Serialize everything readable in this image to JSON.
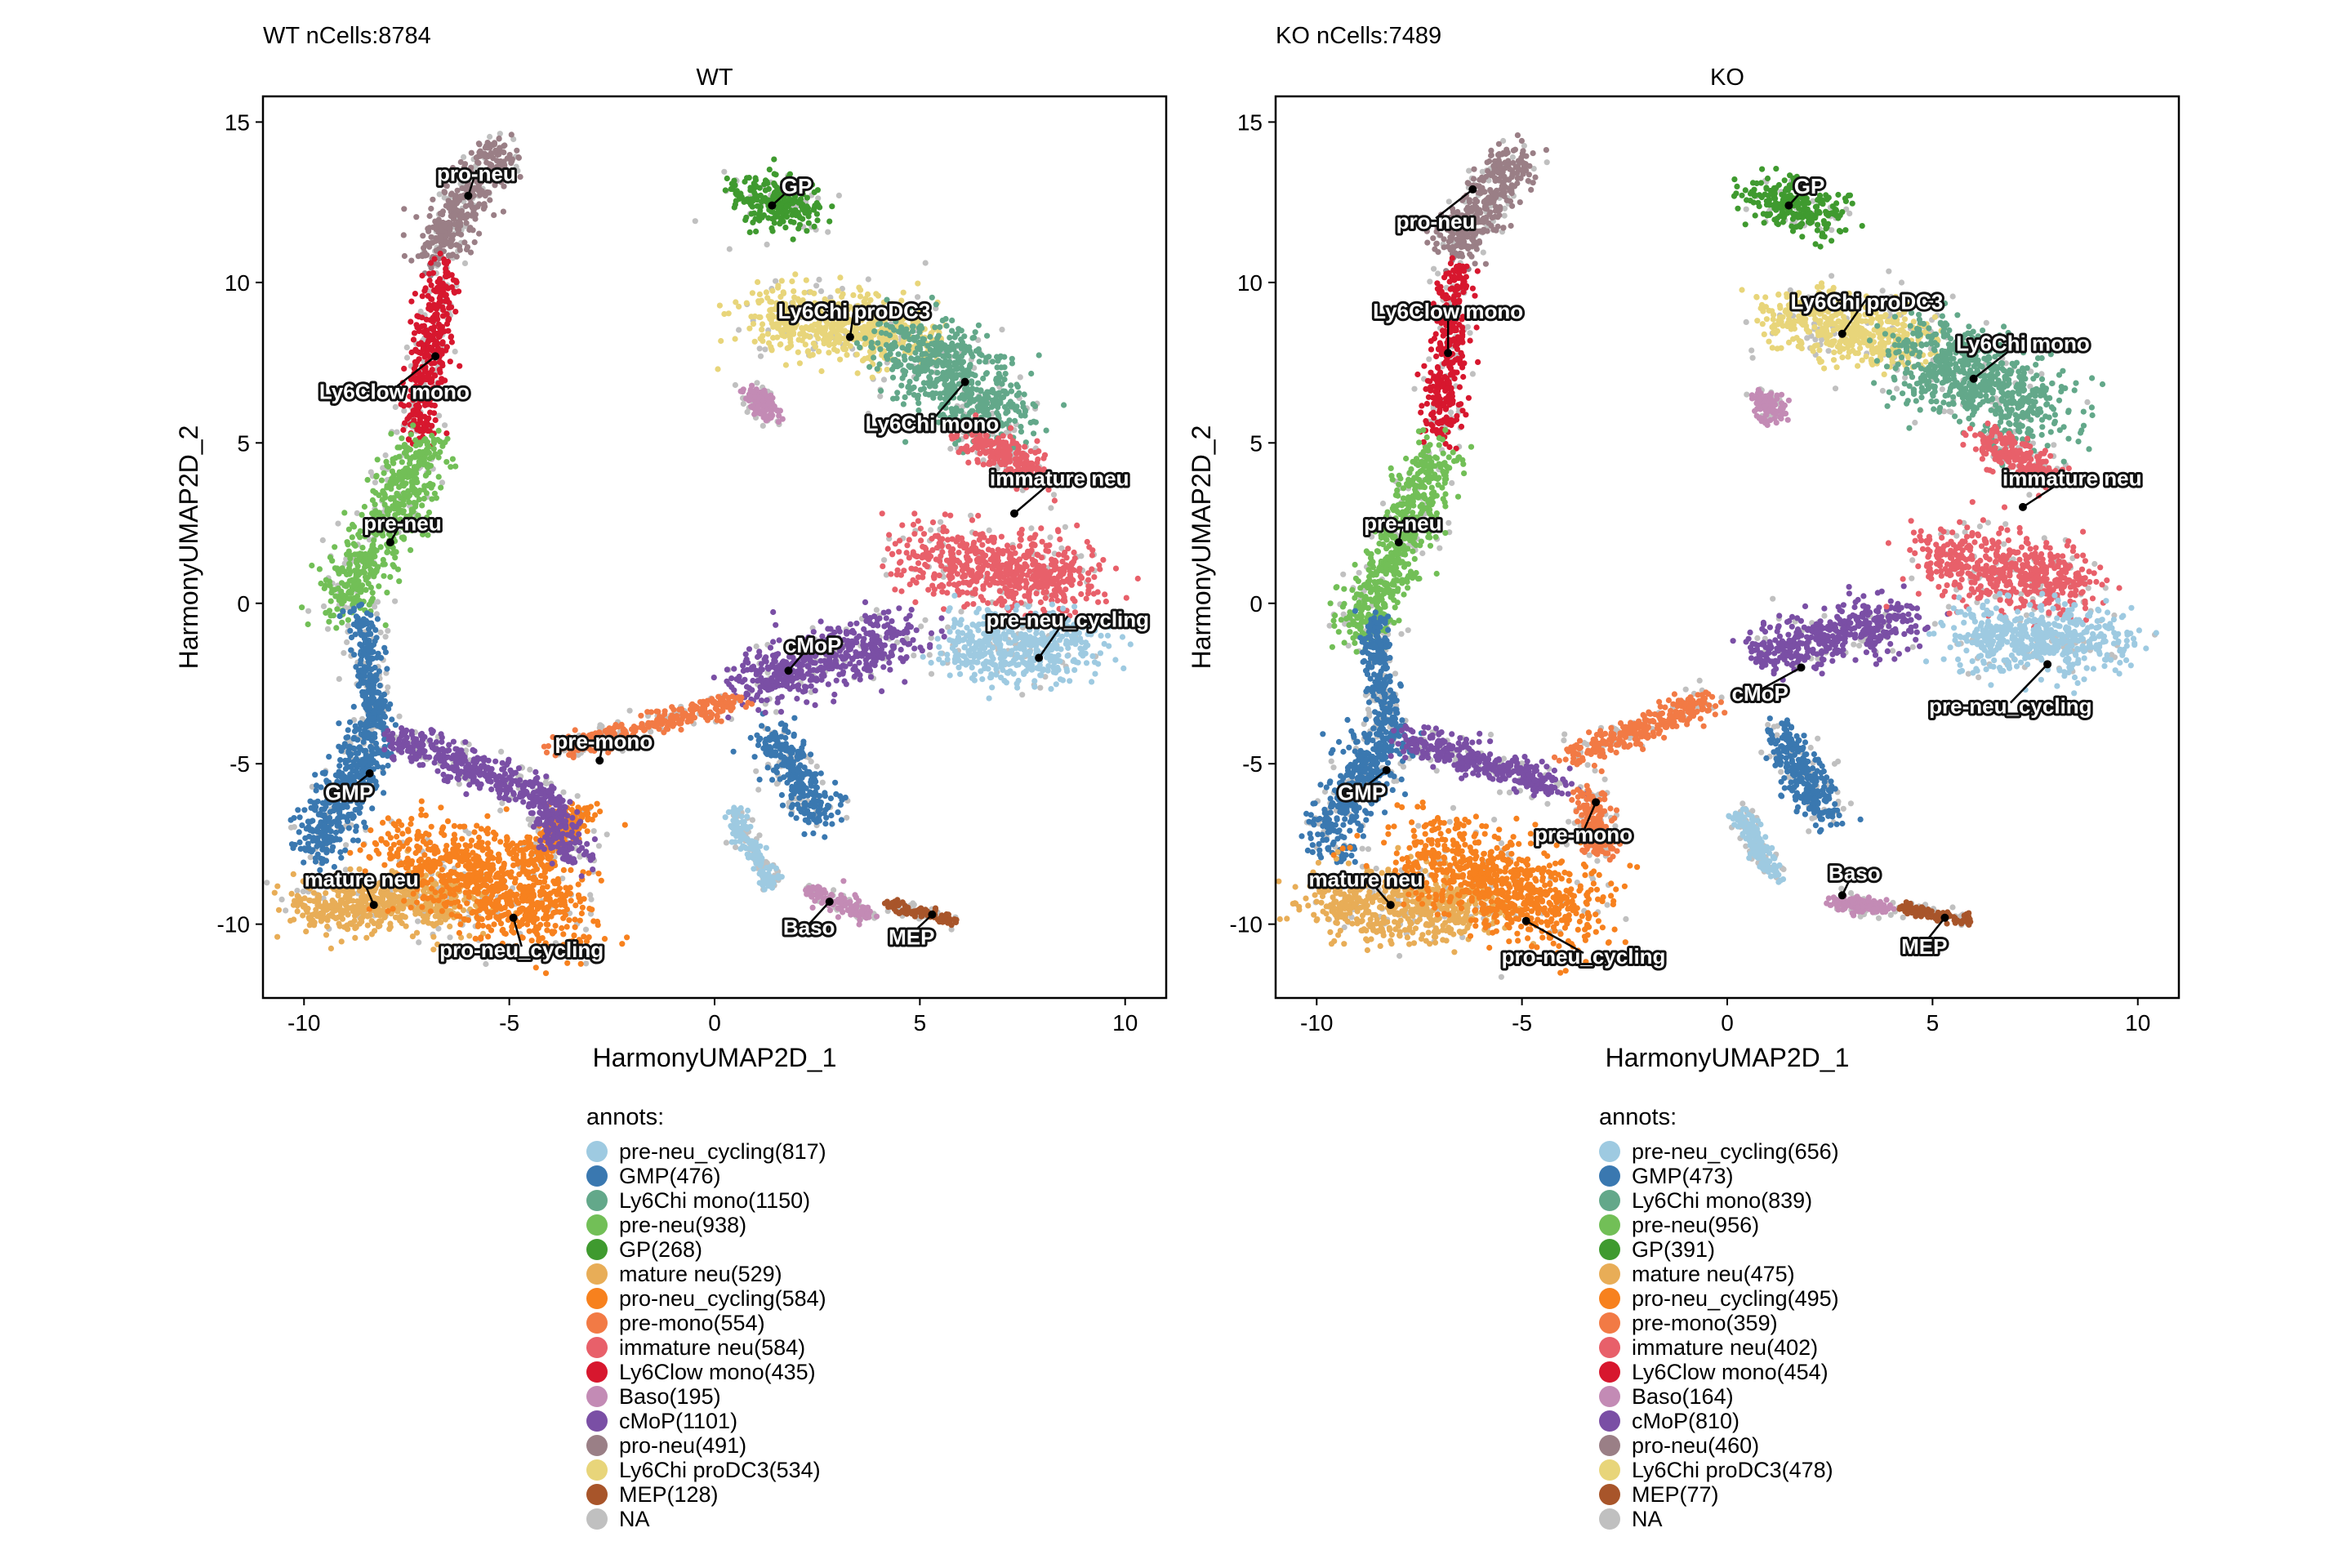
{
  "panels": [
    {
      "title": "WT nCells:8784",
      "facet": "WT",
      "legend_title": "annots:",
      "legend": [
        {
          "label": "pre-neu_cycling(817)",
          "color": "#9ecae1"
        },
        {
          "label": "GMP(476)",
          "color": "#3a78b0"
        },
        {
          "label": "Ly6Chi mono(1150)",
          "color": "#63a88a"
        },
        {
          "label": "pre-neu(938)",
          "color": "#72bf57"
        },
        {
          "label": "GP(268)",
          "color": "#3f9a2f"
        },
        {
          "label": "mature neu(529)",
          "color": "#e8ad57"
        },
        {
          "label": "pro-neu_cycling(584)",
          "color": "#f7811e"
        },
        {
          "label": "pre-mono(554)",
          "color": "#f27a45"
        },
        {
          "label": "immature neu(584)",
          "color": "#e8606a"
        },
        {
          "label": "Ly6Clow mono(435)",
          "color": "#d7172e"
        },
        {
          "label": "Baso(195)",
          "color": "#c38bb5"
        },
        {
          "label": "cMoP(1101)",
          "color": "#7a4fa5"
        },
        {
          "label": "pro-neu(491)",
          "color": "#9a7f86"
        },
        {
          "label": "Ly6Chi proDC3(534)",
          "color": "#e8d57a"
        },
        {
          "label": "MEP(128)",
          "color": "#a8552a"
        },
        {
          "label": "NA",
          "color": "#c0c0c0"
        }
      ]
    },
    {
      "title": "KO nCells:7489",
      "facet": "KO",
      "legend_title": "annots:",
      "legend": [
        {
          "label": "pre-neu_cycling(656)",
          "color": "#9ecae1"
        },
        {
          "label": "GMP(473)",
          "color": "#3a78b0"
        },
        {
          "label": "Ly6Chi mono(839)",
          "color": "#63a88a"
        },
        {
          "label": "pre-neu(956)",
          "color": "#72bf57"
        },
        {
          "label": "GP(391)",
          "color": "#3f9a2f"
        },
        {
          "label": "mature neu(475)",
          "color": "#e8ad57"
        },
        {
          "label": "pro-neu_cycling(495)",
          "color": "#f7811e"
        },
        {
          "label": "pre-mono(359)",
          "color": "#f27a45"
        },
        {
          "label": "immature neu(402)",
          "color": "#e8606a"
        },
        {
          "label": "Ly6Clow mono(454)",
          "color": "#d7172e"
        },
        {
          "label": "Baso(164)",
          "color": "#c38bb5"
        },
        {
          "label": "cMoP(810)",
          "color": "#7a4fa5"
        },
        {
          "label": "pro-neu(460)",
          "color": "#9a7f86"
        },
        {
          "label": "Ly6Chi proDC3(478)",
          "color": "#e8d57a"
        },
        {
          "label": "MEP(77)",
          "color": "#a8552a"
        },
        {
          "label": "NA",
          "color": "#c0c0c0"
        }
      ]
    }
  ],
  "chart_data": [
    {
      "type": "scatter",
      "title": "WT nCells:8784",
      "facet": "WT",
      "xlabel": "HarmonyUMAP2D_1",
      "ylabel": "HarmonyUMAP2D_2",
      "xlim": [
        -11,
        11
      ],
      "ylim": [
        -12.3,
        15.8
      ],
      "xticks": [
        -10,
        -5,
        0,
        5,
        10
      ],
      "yticks": [
        -10,
        -5,
        0,
        5,
        10,
        15
      ],
      "grid": false,
      "series": [
        {
          "name": "pro-neu",
          "color": "#9a7f86",
          "segments": [
            [
              -6.9,
              10.8,
              -5.2,
              14.3,
              0.7
            ]
          ],
          "label": "pro-neu",
          "anchor": [
            -6.0,
            12.7
          ],
          "label_pos": [
            -5.8,
            13.4
          ]
        },
        {
          "name": "Ly6Clow mono",
          "color": "#d7172e",
          "segments": [
            [
              -6.6,
              10.4,
              -7.3,
              5.2,
              0.5
            ]
          ],
          "label": "Ly6Clow mono",
          "anchor": [
            -6.8,
            7.7
          ],
          "label_pos": [
            -7.8,
            6.6
          ]
        },
        {
          "name": "pre-neu",
          "color": "#72bf57",
          "segments": [
            [
              -7.0,
              5.0,
              -9.1,
              -0.2,
              0.8
            ]
          ],
          "label": "pre-neu",
          "anchor": [
            -7.9,
            1.9
          ],
          "label_pos": [
            -7.6,
            2.5
          ]
        },
        {
          "name": "GMP",
          "color": "#3a78b0",
          "segments": [
            [
              -8.6,
              -0.3,
              -8.3,
              -4.0,
              0.4
            ],
            [
              -8.3,
              -4.0,
              -9.7,
              -7.8,
              0.8
            ],
            [
              1.4,
              -4.0,
              2.6,
              -6.8,
              0.6
            ]
          ],
          "label": "GMP",
          "anchor": [
            -8.4,
            -5.3
          ],
          "label_pos": [
            -8.9,
            -5.9
          ]
        },
        {
          "name": "mature neu",
          "color": "#e8ad57",
          "segments": [
            [
              -9.9,
              -9.4,
              -6.0,
              -9.3,
              1.1
            ]
          ],
          "label": "mature neu",
          "anchor": [
            -8.3,
            -9.4
          ],
          "label_pos": [
            -8.6,
            -8.6
          ]
        },
        {
          "name": "pro-neu_cycling",
          "color": "#f7811e",
          "segments": [
            [
              -7.5,
              -7.6,
              -3.6,
              -9.8,
              1.5
            ],
            [
              -4.5,
              -8.0,
              -3.2,
              -6.5,
              0.6
            ]
          ],
          "label": "pro-neu_cycling",
          "anchor": [
            -4.9,
            -9.8
          ],
          "label_pos": [
            -4.7,
            -10.8
          ]
        },
        {
          "name": "cMoP",
          "color": "#7a4fa5",
          "segments": [
            [
              -7.8,
              -4.2,
              -4.2,
              -6.0,
              0.6
            ],
            [
              -4.2,
              -6.0,
              -3.5,
              -8.0,
              0.6
            ],
            [
              0.7,
              -2.5,
              4.6,
              -1.0,
              1.0
            ]
          ],
          "label": "cMoP",
          "anchor": [
            1.8,
            -2.1
          ],
          "label_pos": [
            2.4,
            -1.3
          ]
        },
        {
          "name": "pre-mono",
          "color": "#f27a45",
          "segments": [
            [
              -3.8,
              -4.6,
              0.6,
              -3.0,
              0.4
            ]
          ],
          "label": "pre-mono",
          "anchor": [
            -2.8,
            -4.9
          ],
          "label_pos": [
            -2.7,
            -4.3
          ]
        },
        {
          "name": "GP",
          "color": "#3f9a2f",
          "segments": [
            [
              0.7,
              12.7,
              2.4,
              12.3,
              0.8
            ]
          ],
          "label": "GP",
          "anchor": [
            1.4,
            12.4
          ],
          "label_pos": [
            2.0,
            13.0
          ]
        },
        {
          "name": "Ly6Chi proDC3",
          "color": "#e8d57a",
          "segments": [
            [
              1.3,
              8.8,
              4.9,
              8.4,
              1.2
            ]
          ],
          "label": "Ly6Chi proDC3",
          "anchor": [
            3.3,
            8.3
          ],
          "label_pos": [
            3.4,
            9.1
          ]
        },
        {
          "name": "Ly6Chi mono",
          "color": "#63a88a",
          "segments": [
            [
              4.8,
              8.3,
              7.0,
              5.7,
              1.4
            ]
          ],
          "label": "Ly6Chi mono",
          "anchor": [
            6.1,
            6.9
          ],
          "label_pos": [
            5.3,
            5.6
          ]
        },
        {
          "name": "immature neu",
          "color": "#e8606a",
          "segments": [
            [
              6.2,
              5.3,
              7.8,
              4.0,
              0.6
            ],
            [
              5.0,
              1.4,
              8.8,
              0.8,
              1.3
            ]
          ],
          "label": "immature neu",
          "anchor": [
            7.3,
            2.8
          ],
          "label_pos": [
            8.4,
            3.9
          ]
        },
        {
          "name": "pre-neu_cycling",
          "color": "#9ecae1",
          "segments": [
            [
              6.0,
              -1.4,
              9.1,
              -1.3,
              1.2
            ],
            [
              0.4,
              -6.5,
              1.4,
              -8.8,
              0.3
            ]
          ],
          "label": "pre-neu_cycling",
          "anchor": [
            7.9,
            -1.7
          ],
          "label_pos": [
            8.6,
            -0.5
          ]
        },
        {
          "name": "Baso",
          "color": "#c38bb5",
          "segments": [
            [
              2.3,
              -8.9,
              3.7,
              -9.7,
              0.3
            ],
            [
              1.0,
              6.5,
              1.3,
              5.8,
              0.35
            ]
          ],
          "label": "Baso",
          "anchor": [
            2.8,
            -9.3
          ],
          "label_pos": [
            2.3,
            -10.1
          ]
        },
        {
          "name": "MEP",
          "color": "#a8552a",
          "segments": [
            [
              4.3,
              -9.4,
              5.8,
              -9.9,
              0.2
            ]
          ],
          "label": "MEP",
          "anchor": [
            5.3,
            -9.7
          ],
          "label_pos": [
            4.8,
            -10.4
          ]
        },
        {
          "name": "NA",
          "color": "#c0c0c0",
          "segments": [
            [
              -9,
              -6,
              8,
              2,
              4
            ]
          ]
        }
      ]
    },
    {
      "type": "scatter",
      "title": "KO nCells:7489",
      "facet": "KO",
      "xlabel": "HarmonyUMAP2D_1",
      "ylabel": "HarmonyUMAP2D_2",
      "xlim": [
        -11,
        11
      ],
      "ylim": [
        -12.3,
        15.8
      ],
      "xticks": [
        -10,
        -5,
        0,
        5,
        10
      ],
      "yticks": [
        -10,
        -5,
        0,
        5,
        10,
        15
      ],
      "grid": false,
      "series": [
        {
          "name": "pro-neu",
          "color": "#9a7f86",
          "segments": [
            [
              -6.8,
              10.8,
              -5.1,
              14.0,
              0.7
            ]
          ],
          "label": "pro-neu",
          "anchor": [
            -6.2,
            12.9
          ],
          "label_pos": [
            -7.1,
            11.9
          ]
        },
        {
          "name": "Ly6Clow mono",
          "color": "#d7172e",
          "segments": [
            [
              -6.6,
              10.4,
              -7.0,
              5.2,
              0.5
            ]
          ],
          "label": "Ly6Clow mono",
          "anchor": [
            -6.8,
            7.8
          ],
          "label_pos": [
            -6.8,
            9.1
          ]
        },
        {
          "name": "pre-neu",
          "color": "#72bf57",
          "segments": [
            [
              -7.0,
              4.8,
              -9.0,
              -1.0,
              0.8
            ]
          ],
          "label": "pre-neu",
          "anchor": [
            -8.0,
            1.9
          ],
          "label_pos": [
            -7.9,
            2.5
          ]
        },
        {
          "name": "GMP",
          "color": "#3a78b0",
          "segments": [
            [
              -8.6,
              -0.5,
              -8.3,
              -4.0,
              0.4
            ],
            [
              -8.3,
              -4.0,
              -9.7,
              -7.5,
              0.8
            ],
            [
              1.3,
              -4.0,
              2.4,
              -6.7,
              0.6
            ]
          ],
          "label": "GMP",
          "anchor": [
            -8.3,
            -5.2
          ],
          "label_pos": [
            -8.9,
            -5.9
          ]
        },
        {
          "name": "mature neu",
          "color": "#e8ad57",
          "segments": [
            [
              -9.8,
              -9.3,
              -6.0,
              -9.5,
              1.2
            ]
          ],
          "label": "mature neu",
          "anchor": [
            -8.2,
            -9.4
          ],
          "label_pos": [
            -8.8,
            -8.6
          ]
        },
        {
          "name": "pro-neu_cycling",
          "color": "#f7811e",
          "segments": [
            [
              -7.5,
              -7.8,
              -3.6,
              -9.7,
              1.5
            ]
          ],
          "label": "pro-neu_cycling",
          "anchor": [
            -4.9,
            -9.9
          ],
          "label_pos": [
            -3.5,
            -11.0
          ]
        },
        {
          "name": "cMoP",
          "color": "#7a4fa5",
          "segments": [
            [
              -7.8,
              -4.2,
              -4.0,
              -5.8,
              0.6
            ],
            [
              0.8,
              -1.5,
              4.4,
              -0.5,
              0.9
            ]
          ],
          "label": "cMoP",
          "anchor": [
            1.8,
            -2.0
          ],
          "label_pos": [
            0.8,
            -2.8
          ]
        },
        {
          "name": "pre-mono",
          "color": "#f27a45",
          "segments": [
            [
              -3.8,
              -4.8,
              -0.4,
              -3.0,
              0.5
            ],
            [
              -3.4,
              -6.0,
              -3.0,
              -7.8,
              0.5
            ]
          ],
          "label": "pre-mono",
          "anchor": [
            -3.2,
            -6.2
          ],
          "label_pos": [
            -3.5,
            -7.2
          ]
        },
        {
          "name": "GP",
          "color": "#3f9a2f",
          "segments": [
            [
              0.8,
              12.7,
              2.5,
              12.1,
              0.8
            ]
          ],
          "label": "GP",
          "anchor": [
            1.5,
            12.4
          ],
          "label_pos": [
            2.0,
            13.0
          ]
        },
        {
          "name": "Ly6Chi proDC3",
          "color": "#e8d57a",
          "segments": [
            [
              1.4,
              9.0,
              4.6,
              8.0,
              1.1
            ]
          ],
          "label": "Ly6Chi proDC3",
          "anchor": [
            2.8,
            8.4
          ],
          "label_pos": [
            3.4,
            9.4
          ]
        },
        {
          "name": "Ly6Chi mono",
          "color": "#63a88a",
          "segments": [
            [
              4.6,
              8.0,
              7.6,
              5.8,
              1.5
            ]
          ],
          "label": "Ly6Chi mono",
          "anchor": [
            6.0,
            7.0
          ],
          "label_pos": [
            7.2,
            8.1
          ]
        },
        {
          "name": "immature neu",
          "color": "#e8606a",
          "segments": [
            [
              6.3,
              5.1,
              7.7,
              4.0,
              0.6
            ],
            [
              5.1,
              1.4,
              8.6,
              0.6,
              1.2
            ]
          ],
          "label": "immature neu",
          "anchor": [
            7.2,
            3.0
          ],
          "label_pos": [
            8.4,
            3.9
          ]
        },
        {
          "name": "pre-neu_cycling",
          "color": "#9ecae1",
          "segments": [
            [
              6.0,
              -1.2,
              9.3,
              -1.1,
              1.2
            ],
            [
              0.3,
              -6.5,
              1.2,
              -8.6,
              0.3
            ]
          ],
          "label": "pre-neu_cycling",
          "anchor": [
            7.8,
            -1.9
          ],
          "label_pos": [
            6.9,
            -3.2
          ]
        },
        {
          "name": "Baso",
          "color": "#c38bb5",
          "segments": [
            [
              2.6,
              -9.3,
              3.9,
              -9.5,
              0.3
            ],
            [
              0.9,
              6.5,
              1.2,
              5.8,
              0.35
            ]
          ],
          "label": "Baso",
          "anchor": [
            2.8,
            -9.1
          ],
          "label_pos": [
            3.1,
            -8.4
          ]
        },
        {
          "name": "MEP",
          "color": "#a8552a",
          "segments": [
            [
              4.3,
              -9.5,
              5.9,
              -9.9,
              0.2
            ]
          ],
          "label": "MEP",
          "anchor": [
            5.3,
            -9.8
          ],
          "label_pos": [
            4.8,
            -10.7
          ]
        },
        {
          "name": "NA",
          "color": "#c0c0c0",
          "segments": [
            [
              -9,
              -6,
              8,
              2,
              4
            ]
          ]
        }
      ]
    }
  ]
}
